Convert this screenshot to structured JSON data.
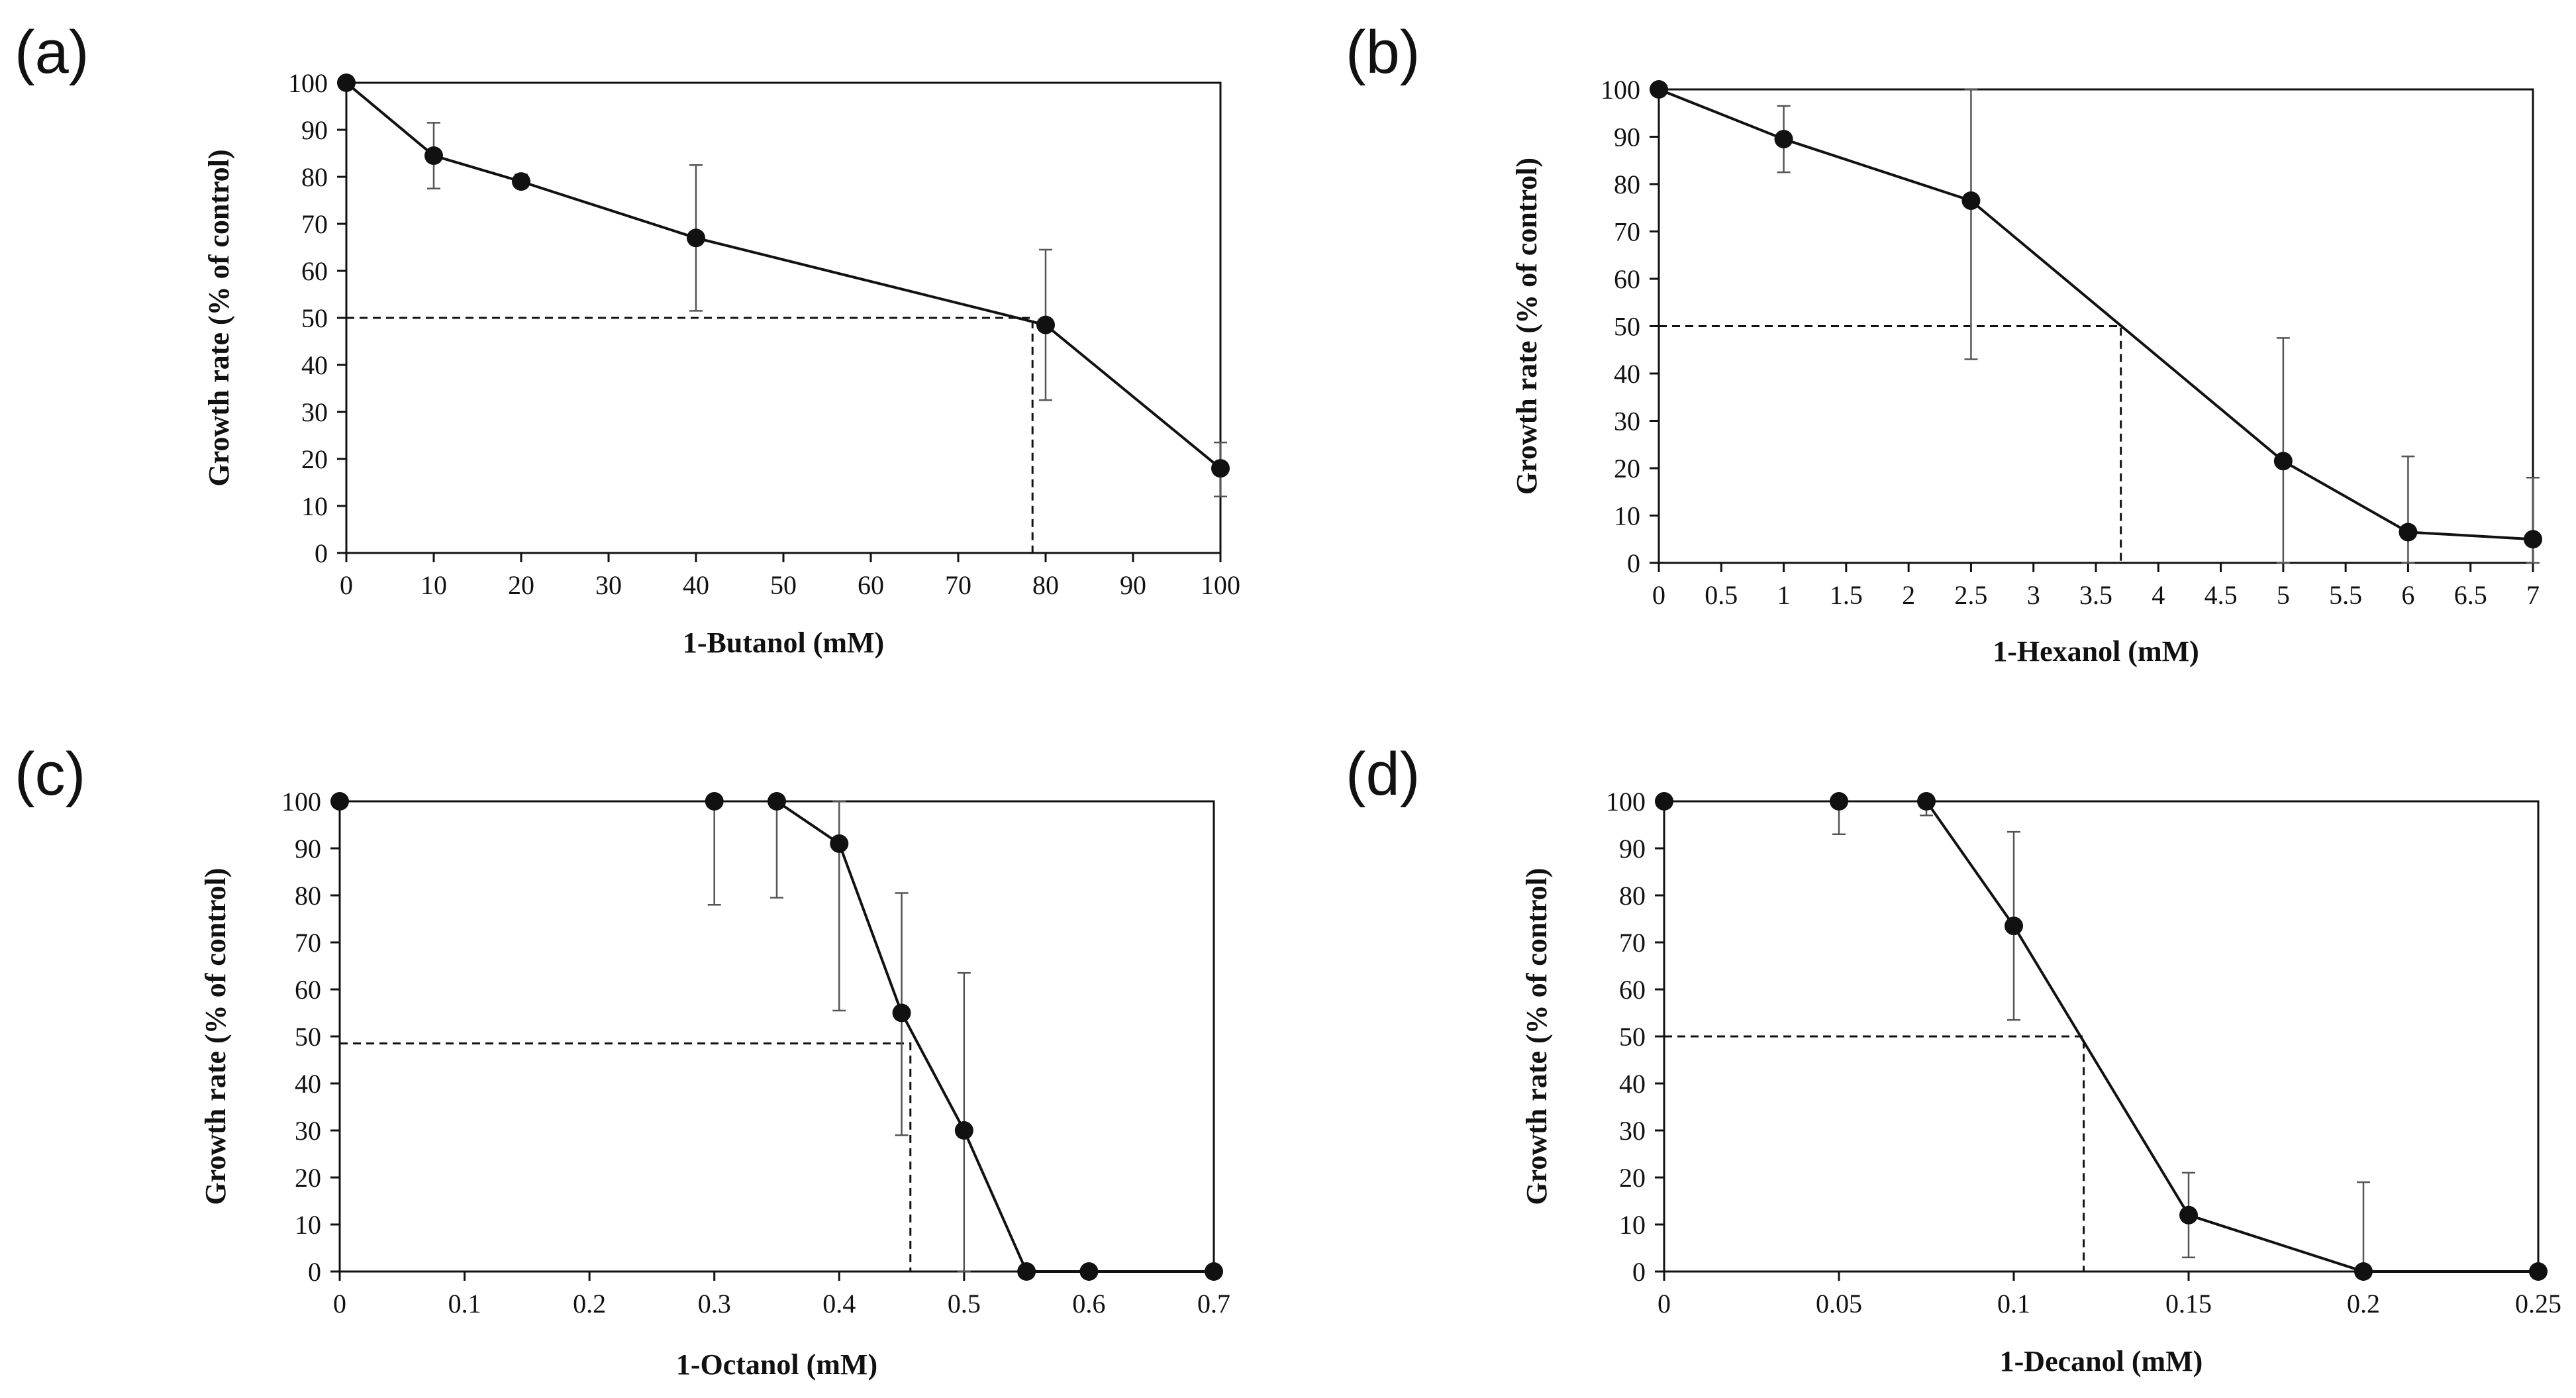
{
  "chart_data": [
    {
      "type": "line",
      "panel_label": "(a)",
      "xlabel": "1-Butanol (mM)",
      "ylabel": "Growth  rate (% of control)",
      "xlim": [
        0,
        100
      ],
      "ylim": [
        0,
        100
      ],
      "x_ticks": [
        0,
        10,
        20,
        30,
        40,
        50,
        60,
        70,
        80,
        90,
        100
      ],
      "y_ticks": [
        0,
        10,
        20,
        30,
        40,
        50,
        60,
        70,
        80,
        90,
        100
      ],
      "grid": false,
      "series": [
        {
          "name": "growth",
          "x": [
            0,
            10,
            20,
            40,
            80,
            100
          ],
          "y": [
            100,
            84.5,
            79,
            67,
            48.5,
            18
          ],
          "err_low": [
            100,
            77.5,
            78,
            51.5,
            32.5,
            12
          ],
          "err_high": [
            100,
            91.5,
            80.5,
            82.5,
            64.5,
            23.5
          ]
        }
      ],
      "ic50": {
        "x": 78.5,
        "y": 50
      }
    },
    {
      "type": "line",
      "panel_label": "(b)",
      "xlabel": "1-Hexanol (mM)",
      "ylabel": "Growth  rate (% of control)",
      "xlim": [
        0,
        7
      ],
      "ylim": [
        0,
        100
      ],
      "x_ticks": [
        "0",
        "0.5",
        "1",
        "1.5",
        "2",
        "2.5",
        "3",
        "3.5",
        "4",
        "4.5",
        "5",
        "5.5",
        "6",
        "6.5",
        "7"
      ],
      "y_ticks": [
        0,
        10,
        20,
        30,
        40,
        50,
        60,
        70,
        80,
        90,
        100
      ],
      "grid": false,
      "series": [
        {
          "name": "growth",
          "x": [
            0,
            1,
            2.5,
            5,
            6,
            7
          ],
          "y": [
            100,
            89.5,
            76.5,
            21.5,
            6.5,
            5
          ],
          "err_low": [
            100,
            82.5,
            43,
            0,
            0,
            0
          ],
          "err_high": [
            100,
            96.5,
            100,
            47.5,
            22.5,
            18
          ]
        }
      ],
      "ic50": {
        "x": 3.7,
        "y": 50
      }
    },
    {
      "type": "line",
      "panel_label": "(c)",
      "xlabel": "1-Octanol (mM)",
      "ylabel": "Growth  rate (% of control)",
      "xlim": [
        0,
        0.7
      ],
      "ylim": [
        0,
        100
      ],
      "x_ticks": [
        "0",
        "0.1",
        "0.2",
        "0.3",
        "0.4",
        "0.5",
        "0.6",
        "0.7"
      ],
      "y_ticks": [
        0,
        10,
        20,
        30,
        40,
        50,
        60,
        70,
        80,
        90,
        100
      ],
      "grid": false,
      "series": [
        {
          "name": "growth",
          "x": [
            0,
            0.3,
            0.35,
            0.4,
            0.45,
            0.5,
            0.55,
            0.6,
            0.7
          ],
          "y": [
            100,
            100,
            100,
            91,
            55,
            30,
            0,
            0,
            0
          ],
          "err_low": [
            100,
            78,
            79.5,
            55.5,
            29,
            0,
            0,
            0,
            0
          ],
          "err_high": [
            100,
            100,
            100,
            100,
            80.5,
            63.5,
            0,
            0,
            0
          ],
          "line_from_index": 2
        }
      ],
      "ic50": {
        "x": 0.457,
        "y": 48.5
      }
    },
    {
      "type": "line",
      "panel_label": "(d)",
      "xlabel": "1-Decanol (mM)",
      "ylabel": "Growth  rate (% of control)",
      "xlim": [
        0,
        0.25
      ],
      "ylim": [
        0,
        100
      ],
      "x_ticks": [
        "0",
        "0.05",
        "0.1",
        "0.15",
        "0.2",
        "0.25"
      ],
      "y_ticks": [
        0,
        10,
        20,
        30,
        40,
        50,
        60,
        70,
        80,
        90,
        100
      ],
      "grid": false,
      "series": [
        {
          "name": "growth",
          "x": [
            0,
            0.05,
            0.075,
            0.1,
            0.15,
            0.2,
            0.25
          ],
          "y": [
            100,
            100,
            100,
            73.5,
            12,
            0,
            0
          ],
          "err_low": [
            100,
            93,
            97,
            53.5,
            3,
            0,
            0
          ],
          "err_high": [
            100,
            100,
            100,
            93.5,
            21,
            19,
            0
          ],
          "line_from_index": 2
        }
      ],
      "ic50": {
        "x": 0.12,
        "y": 50
      }
    }
  ]
}
